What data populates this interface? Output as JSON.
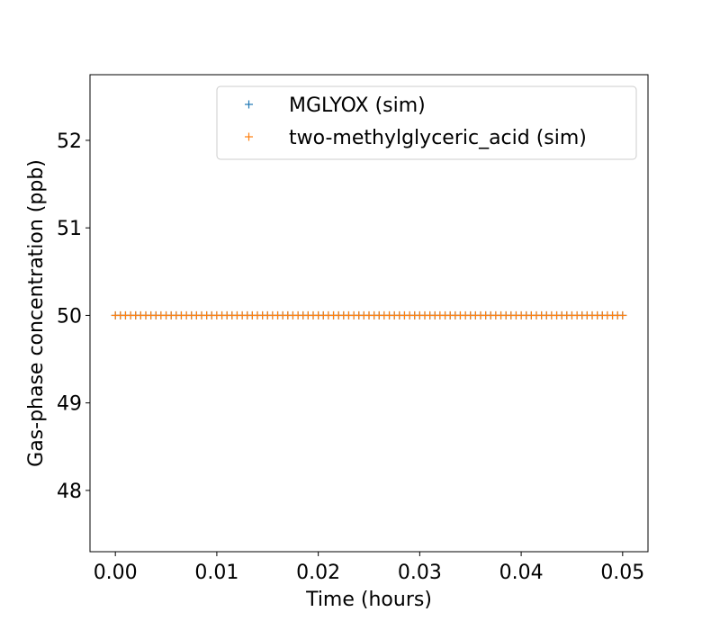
{
  "chart_data": {
    "type": "scatter",
    "title": "",
    "xlabel": "Time (hours)",
    "ylabel": "Gas-phase concentration (ppb)",
    "xlim": [
      -0.0025,
      0.0525
    ],
    "ylim": [
      47.3,
      52.75
    ],
    "xticks": [
      {
        "value": 0.0,
        "label": "0.00"
      },
      {
        "value": 0.01,
        "label": "0.01"
      },
      {
        "value": 0.02,
        "label": "0.02"
      },
      {
        "value": 0.03,
        "label": "0.03"
      },
      {
        "value": 0.04,
        "label": "0.04"
      },
      {
        "value": 0.05,
        "label": "0.05"
      }
    ],
    "yticks": [
      {
        "value": 48,
        "label": "48"
      },
      {
        "value": 49,
        "label": "49"
      },
      {
        "value": 50,
        "label": "50"
      },
      {
        "value": 51,
        "label": "51"
      },
      {
        "value": 52,
        "label": "52"
      }
    ],
    "grid": false,
    "marker": "+",
    "legend_position": "upper right",
    "x_range": {
      "start": 0.0,
      "end": 0.05,
      "count": 101
    },
    "series": [
      {
        "name": "MGLYOX (sim)",
        "color": "#1f77b4",
        "constant_value": 50.0
      },
      {
        "name": "two-methylglyceric_acid (sim)",
        "color": "#ff7f0e",
        "constant_value": 50.0
      }
    ]
  }
}
